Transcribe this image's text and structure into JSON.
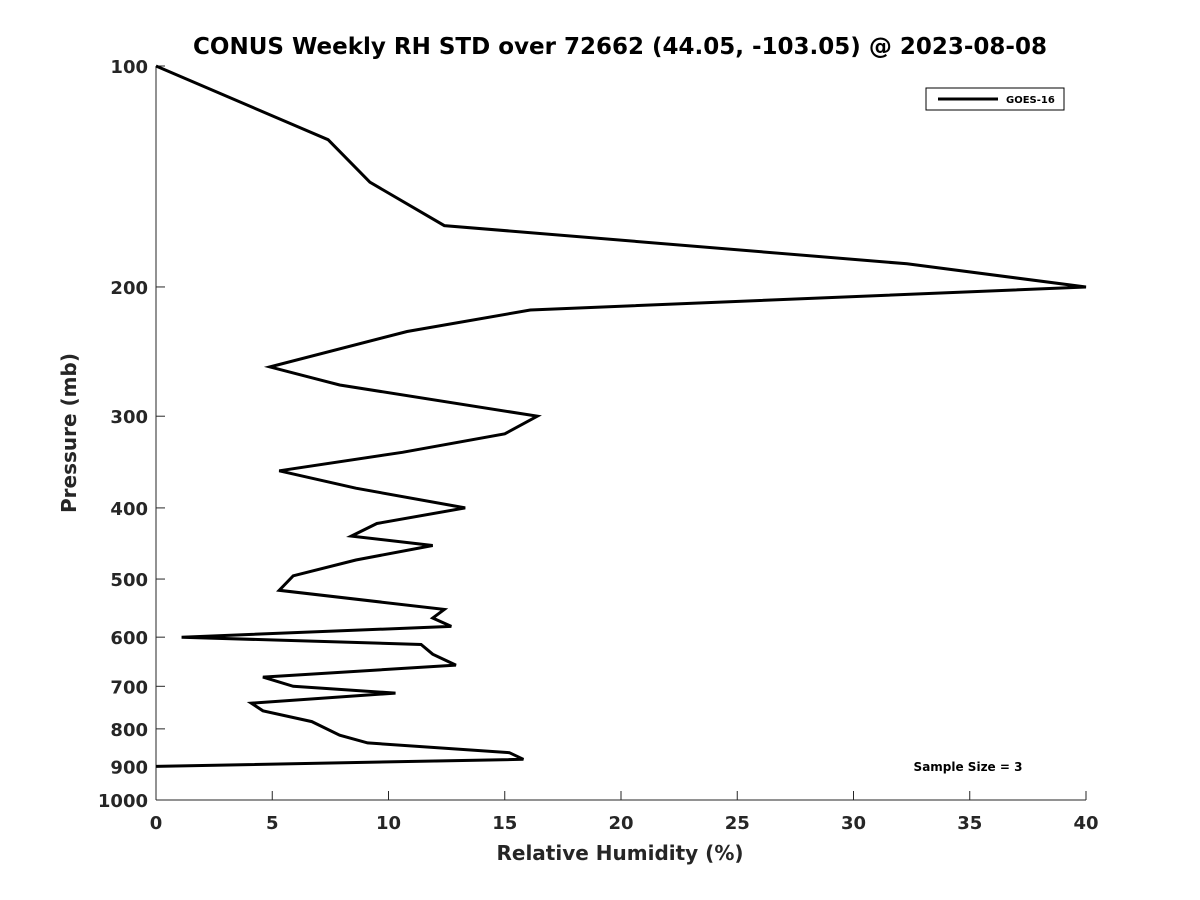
{
  "chart_data": {
    "type": "line",
    "title": "CONUS Weekly RH STD over 72662 (44.05, -103.05) @ 2023-08-08",
    "xlabel": "Relative Humidity (%)",
    "ylabel": "Pressure (mb)",
    "xlim": [
      0,
      40
    ],
    "ylim": [
      100,
      1000
    ],
    "y_scale": "log",
    "y_direction": "reversed",
    "x_ticks": [
      0,
      5,
      10,
      15,
      20,
      25,
      30,
      35,
      40
    ],
    "y_ticks": [
      100,
      200,
      300,
      400,
      500,
      600,
      700,
      800,
      900,
      1000
    ],
    "grid": false,
    "legend_position": "top-right",
    "annotation": "Sample Size = 3",
    "series": [
      {
        "name": "GOES-16",
        "color": "#000000",
        "points": [
          {
            "x": 0.0,
            "y": 100
          },
          {
            "x": 7.4,
            "y": 126
          },
          {
            "x": 9.2,
            "y": 144
          },
          {
            "x": 12.4,
            "y": 165
          },
          {
            "x": 32.3,
            "y": 186
          },
          {
            "x": 40.0,
            "y": 200
          },
          {
            "x": 16.1,
            "y": 215
          },
          {
            "x": 10.8,
            "y": 230
          },
          {
            "x": 4.9,
            "y": 257
          },
          {
            "x": 7.9,
            "y": 272
          },
          {
            "x": 16.4,
            "y": 300
          },
          {
            "x": 15.0,
            "y": 317
          },
          {
            "x": 10.6,
            "y": 336
          },
          {
            "x": 5.3,
            "y": 356
          },
          {
            "x": 8.6,
            "y": 376
          },
          {
            "x": 13.3,
            "y": 400
          },
          {
            "x": 9.5,
            "y": 420
          },
          {
            "x": 8.4,
            "y": 437
          },
          {
            "x": 11.9,
            "y": 450
          },
          {
            "x": 8.6,
            "y": 471
          },
          {
            "x": 5.9,
            "y": 495
          },
          {
            "x": 5.3,
            "y": 518
          },
          {
            "x": 12.4,
            "y": 550
          },
          {
            "x": 11.9,
            "y": 565
          },
          {
            "x": 12.7,
            "y": 580
          },
          {
            "x": 1.1,
            "y": 600
          },
          {
            "x": 11.4,
            "y": 614
          },
          {
            "x": 11.9,
            "y": 633
          },
          {
            "x": 12.9,
            "y": 655
          },
          {
            "x": 4.6,
            "y": 680
          },
          {
            "x": 5.9,
            "y": 700
          },
          {
            "x": 10.3,
            "y": 715
          },
          {
            "x": 4.1,
            "y": 738
          },
          {
            "x": 4.6,
            "y": 756
          },
          {
            "x": 6.7,
            "y": 782
          },
          {
            "x": 7.9,
            "y": 816
          },
          {
            "x": 9.1,
            "y": 836
          },
          {
            "x": 15.2,
            "y": 862
          },
          {
            "x": 15.8,
            "y": 880
          },
          {
            "x": 0.0,
            "y": 900
          }
        ]
      }
    ]
  }
}
